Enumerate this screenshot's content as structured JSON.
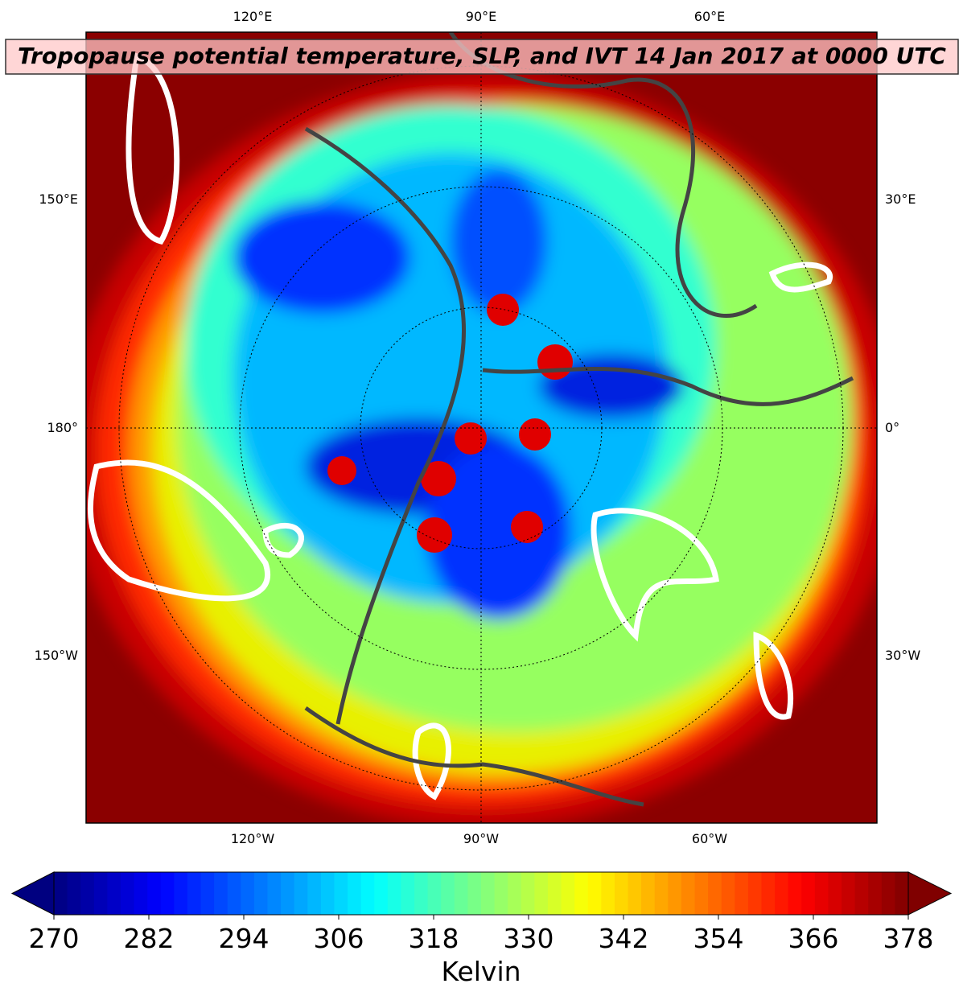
{
  "title": "Tropopause potential temperature, SLP, and IVT 14 Jan 2017 at 0000 UTC",
  "map": {
    "lon_labels": [
      "120°E",
      "90°E",
      "60°E",
      "150°E",
      "30°E",
      "180°",
      "0°",
      "150°W",
      "30°W",
      "120°W",
      "90°W",
      "60°W"
    ]
  },
  "colorbar": {
    "label": "Kelvin",
    "clim": [
      270,
      378
    ],
    "ticks": [
      270,
      282,
      294,
      306,
      318,
      330,
      342,
      354,
      366,
      378
    ],
    "colormap": "jet"
  }
}
